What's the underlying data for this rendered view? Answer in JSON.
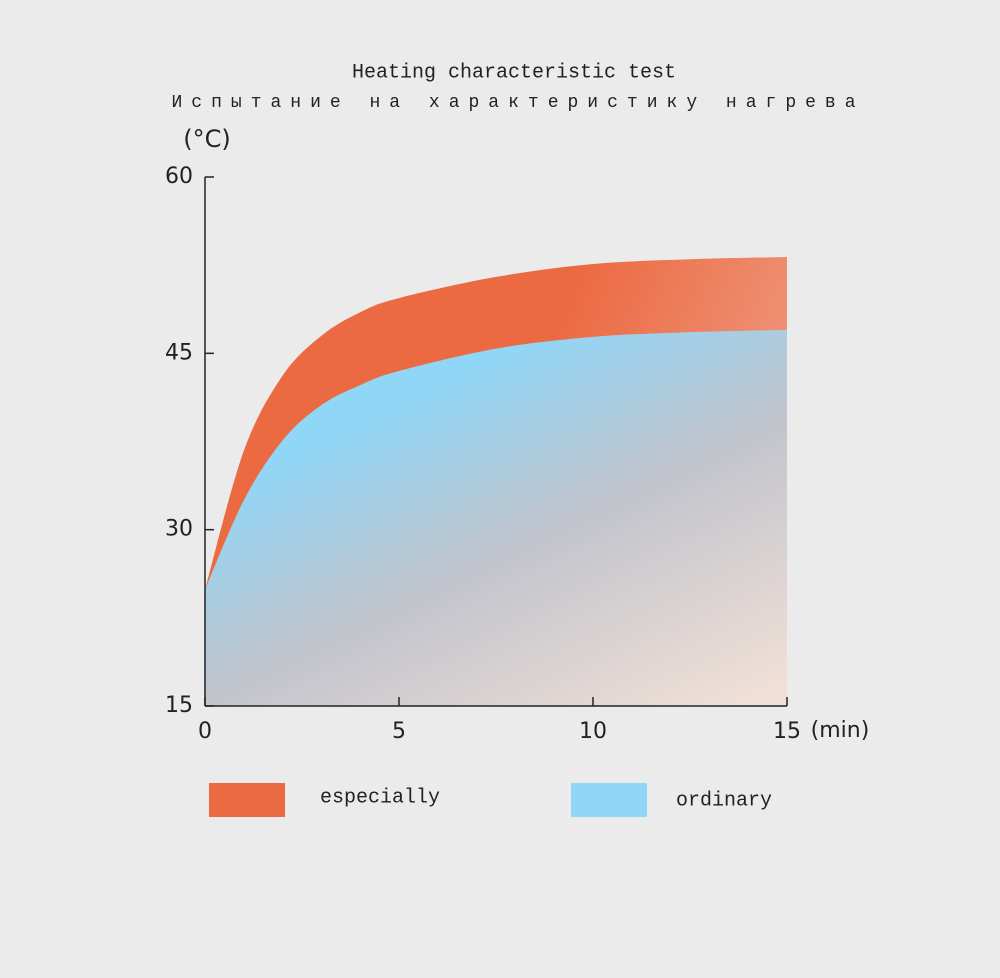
{
  "chart_data": {
    "type": "area",
    "title": "Heating characteristic test",
    "subtitle": "Испытание на характеристику нагрева",
    "y_label": "(°C)",
    "x_label": "(min)",
    "x": [
      0,
      1,
      2,
      3,
      4,
      5,
      7.5,
      10,
      12.5,
      15
    ],
    "series": [
      {
        "name": "especially",
        "color": "#ec6a42",
        "values": [
          24.9,
          36.7,
          43.1,
          46.5,
          48.5,
          49.7,
          51.5,
          52.6,
          53.0,
          53.2
        ]
      },
      {
        "name": "ordinary",
        "color": "#8fd6f7",
        "values": [
          24.9,
          32.5,
          37.6,
          40.6,
          42.3,
          43.5,
          45.4,
          46.4,
          46.8,
          47.0
        ]
      }
    ],
    "xlim": [
      0,
      15
    ],
    "xticks": [
      0,
      5,
      10,
      15
    ],
    "ylim": [
      15,
      60
    ],
    "yticks": [
      15,
      30,
      45,
      60
    ],
    "grid": false
  }
}
